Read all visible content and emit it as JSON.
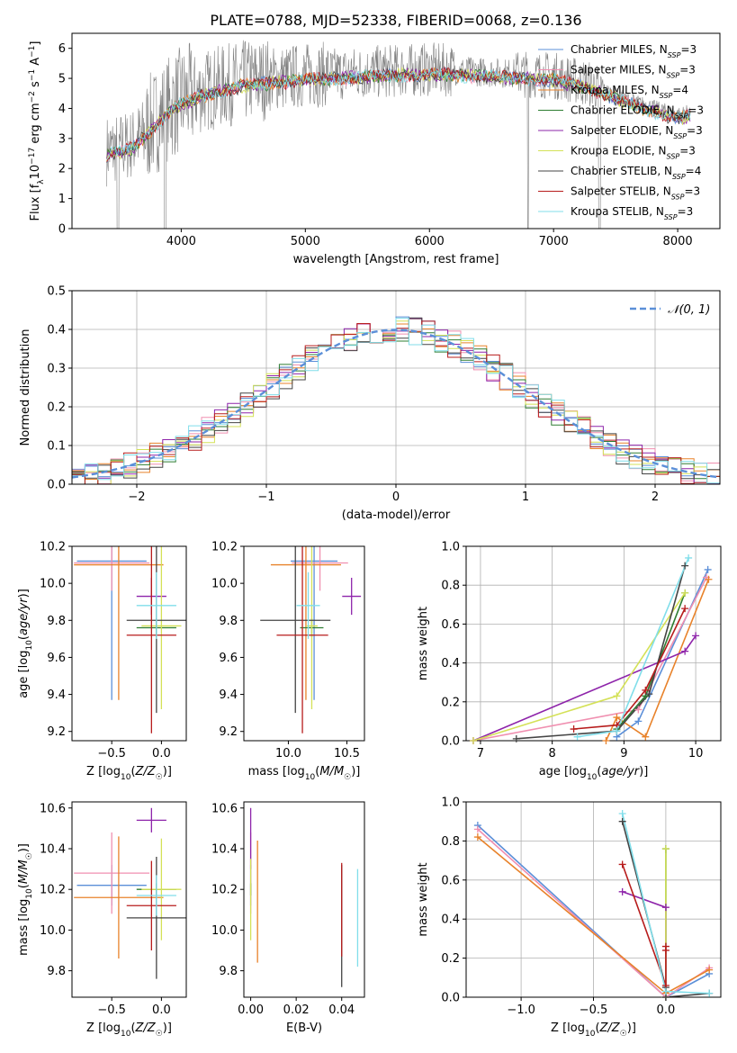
{
  "figure_title": "PLATE=0788, MJD=52338, FIBERID=0068, z=0.136",
  "colors": {
    "Chabrier MILES": "#5b8fd8",
    "Salpeter MILES": "#f08fb0",
    "Kroupa MILES": "#e8822a",
    "Chabrier ELODIE": "#2e7d32",
    "Salpeter ELODIE": "#8e24aa",
    "Kroupa ELODIE": "#d4e157",
    "Chabrier STELIB": "#444444",
    "Salpeter STELIB": "#b71c1c",
    "Kroupa STELIB": "#80deea",
    "data": "#808080"
  },
  "chart_data": [
    {
      "id": "spectrum",
      "type": "line",
      "title": "PLATE=0788, MJD=52338, FIBERID=0068, z=0.136",
      "xlabel": "wavelength [Angstrom, rest frame]",
      "ylabel": "Flux [fλ 10⁻¹⁷ erg cm⁻² s⁻¹ A⁻¹]",
      "xlim": [
        3120,
        8340
      ],
      "ylim": [
        0,
        6.5
      ],
      "xticks": [
        4000,
        5000,
        6000,
        7000,
        8000
      ],
      "yticks": [
        0,
        1,
        2,
        3,
        4,
        5,
        6
      ],
      "legend_position": "right",
      "series": [
        {
          "name": "Chabrier MILES, N_SSP=3"
        },
        {
          "name": "Salpeter MILES, N_SSP=3"
        },
        {
          "name": "Kroupa MILES, N_SSP=4"
        },
        {
          "name": "Chabrier ELODIE, N_SSP=3"
        },
        {
          "name": "Salpeter ELODIE, N_SSP=3"
        },
        {
          "name": "Kroupa ELODIE, N_SSP=3"
        },
        {
          "name": "Chabrier STELIB, N_SSP=4"
        },
        {
          "name": "Salpeter STELIB, N_SSP=3"
        },
        {
          "name": "Kroupa STELIB, N_SSP=3"
        }
      ],
      "continuum": {
        "x": [
          3400,
          3600,
          3700,
          3800,
          3900,
          4000,
          4200,
          4500,
          5000,
          5500,
          6000,
          6500,
          7000,
          7300,
          7600,
          8000,
          8100
        ],
        "y": [
          2.6,
          2.8,
          3.2,
          3.6,
          4.0,
          4.3,
          4.6,
          4.9,
          5.1,
          5.2,
          5.3,
          5.2,
          5.1,
          4.8,
          4.3,
          3.8,
          3.9
        ]
      }
    },
    {
      "id": "residuals",
      "type": "line",
      "xlabel": "(data-model)/error",
      "ylabel": "Normed distribution",
      "xlim": [
        -2.5,
        2.5
      ],
      "ylim": [
        0,
        0.5
      ],
      "xticks": [
        -2,
        -1,
        0,
        1,
        2
      ],
      "yticks": [
        0.0,
        0.1,
        0.2,
        0.3,
        0.4,
        0.5
      ],
      "grid": true,
      "legend": "𝒩(0, 1)",
      "legend_position": "top-right"
    },
    {
      "id": "age-vs-Z",
      "type": "scatter",
      "xlabel": "Z [log10(Z/Z☉)]",
      "ylabel": "age [log10(age/yr)]",
      "xlim": [
        -0.9,
        0.25
      ],
      "ylim": [
        9.15,
        10.2
      ],
      "xticks": [
        -0.5,
        0.0
      ],
      "yticks": [
        9.2,
        9.4,
        9.6,
        9.8,
        10.0,
        10.2
      ],
      "points": [
        {
          "model": "Chabrier MILES",
          "x": -0.5,
          "xerr": 0.35,
          "y": 10.12,
          "yerr": 0.75
        },
        {
          "model": "Salpeter MILES",
          "x": -0.5,
          "xerr": 0.38,
          "y": 10.11,
          "yerr": 0.15
        },
        {
          "model": "Kroupa MILES",
          "x": -0.43,
          "xerr": 0.45,
          "y": 10.1,
          "yerr": 0.73
        },
        {
          "model": "Chabrier ELODIE",
          "x": -0.05,
          "xerr": 0.2,
          "y": 9.76,
          "yerr": 0.05
        },
        {
          "model": "Salpeter ELODIE",
          "x": -0.1,
          "xerr": 0.15,
          "y": 9.93,
          "yerr": 0.1
        },
        {
          "model": "Kroupa ELODIE",
          "x": 0.0,
          "xerr": 0.2,
          "y": 9.77,
          "yerr": 0.45
        },
        {
          "model": "Chabrier STELIB",
          "x": -0.05,
          "xerr": 0.3,
          "y": 9.8,
          "yerr": 0.5
        },
        {
          "model": "Salpeter STELIB",
          "x": -0.1,
          "xerr": 0.25,
          "y": 9.72,
          "yerr": 0.53
        },
        {
          "model": "Kroupa STELIB",
          "x": -0.05,
          "xerr": 0.2,
          "y": 9.88,
          "yerr": 0.18
        }
      ]
    },
    {
      "id": "age-vs-mass",
      "type": "scatter",
      "xlabel": "mass [log10(M/M☉)]",
      "ylabel": "",
      "xlim": [
        9.62,
        10.65
      ],
      "ylim": [
        9.15,
        10.2
      ],
      "xticks": [
        10.0,
        10.5
      ],
      "yticks": [
        9.2,
        9.4,
        9.6,
        9.8,
        10.0,
        10.2
      ],
      "points": [
        {
          "model": "Chabrier MILES",
          "x": 10.22,
          "xerr": 0.2,
          "y": 10.12,
          "yerr": 0.75
        },
        {
          "model": "Salpeter MILES",
          "x": 10.27,
          "xerr": 0.24,
          "y": 10.11,
          "yerr": 0.15
        },
        {
          "model": "Kroupa MILES",
          "x": 10.15,
          "xerr": 0.3,
          "y": 10.1,
          "yerr": 0.73
        },
        {
          "model": "Chabrier ELODIE",
          "x": 10.2,
          "xerr": 0.1,
          "y": 9.76,
          "yerr": 0.05
        },
        {
          "model": "Salpeter ELODIE",
          "x": 10.54,
          "xerr": 0.08,
          "y": 9.93,
          "yerr": 0.1
        },
        {
          "model": "Kroupa ELODIE",
          "x": 10.2,
          "xerr": 0.05,
          "y": 9.77,
          "yerr": 0.45
        },
        {
          "model": "Chabrier STELIB",
          "x": 10.06,
          "xerr": 0.3,
          "y": 9.8,
          "yerr": 0.5
        },
        {
          "model": "Salpeter STELIB",
          "x": 10.12,
          "xerr": 0.22,
          "y": 9.72,
          "yerr": 0.53
        },
        {
          "model": "Kroupa STELIB",
          "x": 10.17,
          "xerr": 0.1,
          "y": 9.88,
          "yerr": 0.18
        }
      ]
    },
    {
      "id": "weight-vs-age",
      "type": "line",
      "xlabel": "age [log10(age/yr)]",
      "ylabel": "mass weight",
      "xlim": [
        6.8,
        10.35
      ],
      "ylim": [
        0,
        1.0
      ],
      "xticks": [
        7,
        8,
        9,
        10
      ],
      "yticks": [
        0.0,
        0.2,
        0.4,
        0.6,
        0.8,
        1.0
      ],
      "grid": true,
      "series": [
        {
          "model": "Chabrier MILES",
          "x": [
            8.9,
            9.2,
            10.17
          ],
          "y": [
            0.02,
            0.1,
            0.88
          ]
        },
        {
          "model": "Salpeter MILES",
          "x": [
            6.9,
            9.2,
            10.15
          ],
          "y": [
            0.0,
            0.16,
            0.84
          ]
        },
        {
          "model": "Kroupa MILES",
          "x": [
            8.75,
            8.9,
            9.3,
            10.18
          ],
          "y": [
            0.0,
            0.12,
            0.02,
            0.83
          ]
        },
        {
          "model": "Chabrier ELODIE",
          "x": [
            8.9,
            9.3,
            9.85
          ],
          "y": [
            0.06,
            0.23,
            0.76
          ]
        },
        {
          "model": "Salpeter ELODIE",
          "x": [
            6.9,
            9.85,
            10.0
          ],
          "y": [
            0.0,
            0.46,
            0.54
          ]
        },
        {
          "model": "Kroupa ELODIE",
          "x": [
            6.9,
            8.9,
            9.85
          ],
          "y": [
            0.0,
            0.23,
            0.76
          ]
        },
        {
          "model": "Chabrier STELIB",
          "x": [
            7.5,
            8.9,
            9.35,
            9.85
          ],
          "y": [
            0.01,
            0.05,
            0.24,
            0.9
          ]
        },
        {
          "model": "Salpeter STELIB",
          "x": [
            8.3,
            8.9,
            9.3,
            9.85
          ],
          "y": [
            0.06,
            0.08,
            0.26,
            0.68
          ]
        },
        {
          "model": "Kroupa STELIB",
          "x": [
            8.35,
            8.9,
            9.9
          ],
          "y": [
            0.02,
            0.05,
            0.94
          ]
        }
      ]
    },
    {
      "id": "mass-vs-Z",
      "type": "scatter",
      "xlabel": "Z [log10(Z/Z☉)]",
      "ylabel": "mass [log10(M/M☉)]",
      "xlim": [
        -0.9,
        0.25
      ],
      "ylim": [
        9.67,
        10.63
      ],
      "xticks": [
        -0.5,
        0.0
      ],
      "yticks": [
        9.8,
        10.0,
        10.2,
        10.4,
        10.6
      ],
      "points": [
        {
          "model": "Chabrier MILES",
          "x": -0.5,
          "xerr": 0.35,
          "y": 10.22,
          "yerr": 0.1
        },
        {
          "model": "Salpeter MILES",
          "x": -0.5,
          "xerr": 0.38,
          "y": 10.28,
          "yerr": 0.2
        },
        {
          "model": "Kroupa MILES",
          "x": -0.43,
          "xerr": 0.45,
          "y": 10.16,
          "yerr": 0.3
        },
        {
          "model": "Chabrier ELODIE",
          "x": -0.05,
          "xerr": 0.2,
          "y": 10.2,
          "yerr": 0.03
        },
        {
          "model": "Salpeter ELODIE",
          "x": -0.1,
          "xerr": 0.15,
          "y": 10.54,
          "yerr": 0.06
        },
        {
          "model": "Kroupa ELODIE",
          "x": 0.0,
          "xerr": 0.2,
          "y": 10.2,
          "yerr": 0.25
        },
        {
          "model": "Chabrier STELIB",
          "x": -0.05,
          "xerr": 0.3,
          "y": 10.06,
          "yerr": 0.3
        },
        {
          "model": "Salpeter STELIB",
          "x": -0.1,
          "xerr": 0.25,
          "y": 10.12,
          "yerr": 0.22
        },
        {
          "model": "Kroupa STELIB",
          "x": -0.05,
          "xerr": 0.2,
          "y": 10.17,
          "yerr": 0.1
        }
      ]
    },
    {
      "id": "mass-vs-ebv",
      "type": "scatter",
      "xlabel": "E(B-V)",
      "ylabel": "",
      "xlim": [
        -0.003,
        0.05
      ],
      "ylim": [
        9.67,
        10.63
      ],
      "xticks": [
        0.0,
        0.02,
        0.04
      ],
      "yticks": [
        9.8,
        10.0,
        10.2,
        10.4,
        10.6
      ],
      "points": [
        {
          "model": "Chabrier MILES",
          "x": 0.0,
          "y": 10.22,
          "yerr": 0.1
        },
        {
          "model": "Salpeter MILES",
          "x": 0.0,
          "y": 10.28,
          "yerr": 0.2
        },
        {
          "model": "Kroupa MILES",
          "x": 0.003,
          "y": 10.14,
          "yerr": 0.3
        },
        {
          "model": "Chabrier ELODIE",
          "x": 0.0,
          "y": 10.2,
          "yerr": 0.03
        },
        {
          "model": "Salpeter ELODIE",
          "x": 0.0,
          "y": 10.45,
          "yerr": 0.15
        },
        {
          "model": "Kroupa ELODIE",
          "x": 0.0,
          "y": 10.15,
          "yerr": 0.2
        },
        {
          "model": "Chabrier STELIB",
          "x": 0.04,
          "y": 10.02,
          "yerr": 0.3
        },
        {
          "model": "Salpeter STELIB",
          "x": 0.04,
          "y": 10.1,
          "yerr": 0.23
        },
        {
          "model": "Kroupa STELIB",
          "x": 0.047,
          "y": 10.06,
          "yerr": 0.24
        }
      ]
    },
    {
      "id": "weight-vs-Z",
      "type": "line",
      "xlabel": "Z [log10(Z/Z☉)]",
      "ylabel": "mass weight",
      "xlim": [
        -1.38,
        0.38
      ],
      "ylim": [
        0,
        1.0
      ],
      "xticks": [
        -1.0,
        -0.5,
        0.0
      ],
      "yticks": [
        0.0,
        0.2,
        0.4,
        0.6,
        0.8,
        1.0
      ],
      "grid": true,
      "series": [
        {
          "model": "Chabrier MILES",
          "x": [
            -1.3,
            0.0,
            0.3
          ],
          "y": [
            0.88,
            0.0,
            0.12
          ]
        },
        {
          "model": "Salpeter MILES",
          "x": [
            -1.3,
            0.0,
            0.3
          ],
          "y": [
            0.86,
            0.0,
            0.15
          ]
        },
        {
          "model": "Kroupa MILES",
          "x": [
            -1.3,
            0.0,
            0.3
          ],
          "y": [
            0.82,
            0.02,
            0.14
          ]
        },
        {
          "model": "Chabrier ELODIE",
          "x": [
            0.0,
            0.0
          ],
          "y": [
            0.76,
            0.0
          ]
        },
        {
          "model": "Salpeter ELODIE",
          "x": [
            -0.3,
            0.0,
            0.0
          ],
          "y": [
            0.54,
            0.46,
            0.0
          ]
        },
        {
          "model": "Kroupa ELODIE",
          "x": [
            0.0,
            0.0
          ],
          "y": [
            0.76,
            0.0
          ]
        },
        {
          "model": "Chabrier STELIB",
          "x": [
            -0.3,
            0.0,
            0.0,
            0.3
          ],
          "y": [
            0.9,
            0.05,
            0.0,
            0.02
          ]
        },
        {
          "model": "Salpeter STELIB",
          "x": [
            -0.3,
            0.0,
            0.0,
            0.0
          ],
          "y": [
            0.68,
            0.06,
            0.24,
            0.26
          ]
        },
        {
          "model": "Kroupa STELIB",
          "x": [
            -0.3,
            0.0,
            0.3
          ],
          "y": [
            0.94,
            0.03,
            0.02
          ]
        }
      ]
    }
  ]
}
